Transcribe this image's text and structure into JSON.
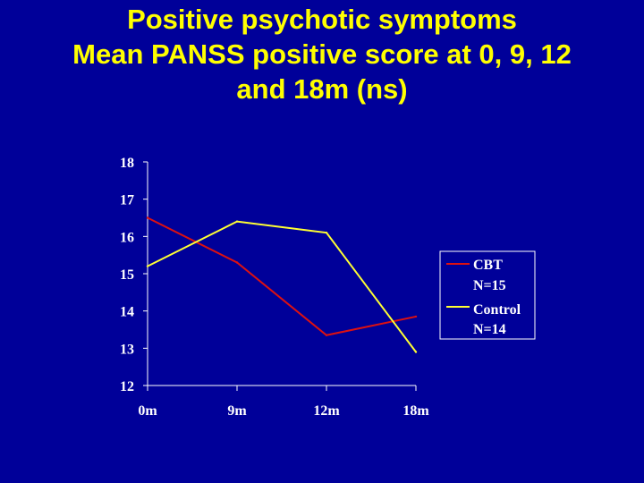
{
  "slide": {
    "title_lines": [
      "Positive psychotic symptoms",
      "Mean PANSS positive score at 0, 9, 12",
      "and 18m (ns)"
    ]
  },
  "colors": {
    "background": "#000099",
    "title": "#ffff00",
    "cbt": "#dd1111",
    "control": "#ffff33",
    "axis": "#ffffff"
  },
  "chart_data": {
    "type": "line",
    "categories": [
      "0m",
      "9m",
      "12m",
      "18m"
    ],
    "ylim": [
      12,
      18
    ],
    "yticks": [
      "18",
      "17",
      "16",
      "15",
      "14",
      "13",
      "12"
    ],
    "grid": false,
    "legend_position": "right",
    "series": [
      {
        "name": "CBT",
        "name_line2": "N=15",
        "color": "#dd1111",
        "values": [
          16.5,
          15.3,
          13.35,
          13.85
        ]
      },
      {
        "name": "Control",
        "name_line2": "N=14",
        "color": "#ffff33",
        "values": [
          15.2,
          16.4,
          16.1,
          12.9
        ]
      }
    ]
  }
}
